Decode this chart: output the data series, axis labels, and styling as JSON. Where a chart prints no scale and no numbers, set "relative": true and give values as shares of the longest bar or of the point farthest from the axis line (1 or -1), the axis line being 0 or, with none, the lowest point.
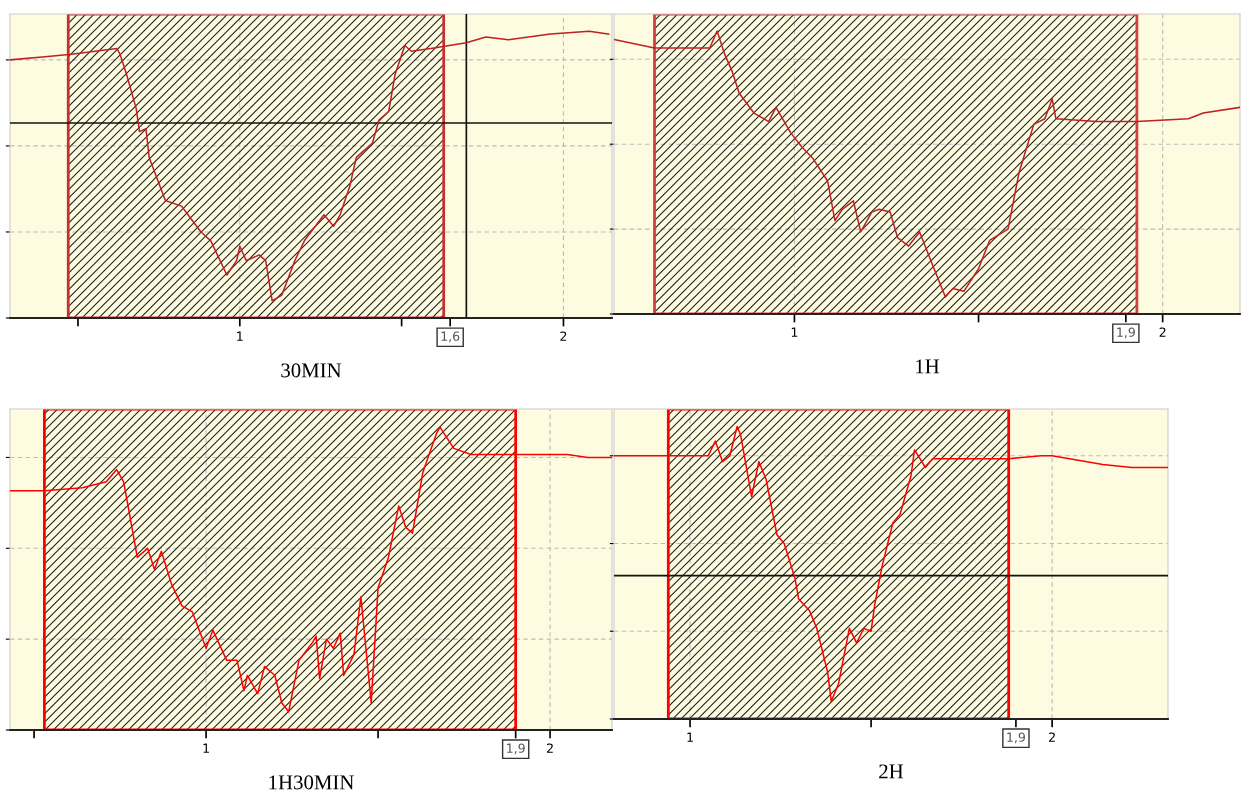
{
  "chart_data": [
    {
      "type": "line",
      "relative": true,
      "xlabel": "30MIN",
      "xlim": [
        0.29,
        2.15
      ],
      "xticks": [
        {
          "value": 0.5,
          "label": null
        },
        1,
        {
          "value": 1.5,
          "label": null
        },
        {
          "value": 1.65,
          "label": "1,6"
        },
        2
      ],
      "grid": true,
      "tick_labels": "x",
      "bands": [
        {
          "axis": "x",
          "from": 0.47,
          "to": 1.63,
          "color": "#c83030"
        }
      ],
      "ref_lines": [
        {
          "axis": "x",
          "value": 1.7
        },
        {
          "axis": "y",
          "value": 0.68
        }
      ],
      "series": [
        {
          "color": "#c02020",
          "x": [
            0.29,
            0.39,
            0.48,
            0.62,
            0.63,
            0.65,
            0.68,
            0.69,
            0.71,
            0.72,
            0.77,
            0.82,
            0.84,
            0.88,
            0.91,
            0.96,
            0.99,
            1.0,
            1.02,
            1.06,
            1.08,
            1.1,
            1.13,
            1.17,
            1.2,
            1.26,
            1.29,
            1.31,
            1.34,
            1.36,
            1.41,
            1.43,
            1.46,
            1.48,
            1.51,
            1.53,
            1.59,
            1.7,
            1.76,
            1.83,
            1.96,
            2.08,
            2.14
          ],
          "values": [
            0.9,
            0.91,
            0.92,
            0.94,
            0.92,
            0.85,
            0.73,
            0.65,
            0.66,
            0.56,
            0.41,
            0.39,
            0.36,
            0.3,
            0.27,
            0.15,
            0.2,
            0.25,
            0.2,
            0.22,
            0.2,
            0.06,
            0.08,
            0.2,
            0.27,
            0.36,
            0.32,
            0.36,
            0.46,
            0.56,
            0.61,
            0.69,
            0.72,
            0.85,
            0.95,
            0.93,
            0.94,
            0.96,
            0.98,
            0.97,
            0.99,
            1.0,
            0.99
          ]
        }
      ]
    },
    {
      "type": "line",
      "relative": true,
      "xlabel": "1H",
      "xlim": [
        0.51,
        2.21
      ],
      "xticks": [
        1,
        {
          "value": 1.5,
          "label": null
        },
        {
          "value": 1.9,
          "label": "1,9"
        },
        2
      ],
      "grid": true,
      "tick_labels": "x",
      "bands": [
        {
          "axis": "x",
          "from": 0.62,
          "to": 1.93,
          "color": "#d04040"
        }
      ],
      "series": [
        {
          "color": "#c02020",
          "x": [
            0.51,
            0.62,
            0.77,
            0.79,
            0.81,
            0.83,
            0.85,
            0.89,
            0.93,
            0.95,
            0.99,
            1.02,
            1.05,
            1.09,
            1.11,
            1.13,
            1.16,
            1.18,
            1.21,
            1.23,
            1.26,
            1.28,
            1.31,
            1.34,
            1.37,
            1.41,
            1.43,
            1.46,
            1.5,
            1.53,
            1.58,
            1.61,
            1.65,
            1.68,
            1.7,
            1.71,
            1.82,
            1.93,
            2.07,
            2.11,
            2.21
          ],
          "values": [
            0.97,
            0.94,
            0.94,
            1.0,
            0.92,
            0.86,
            0.78,
            0.71,
            0.68,
            0.73,
            0.64,
            0.59,
            0.55,
            0.47,
            0.33,
            0.37,
            0.4,
            0.29,
            0.36,
            0.37,
            0.36,
            0.27,
            0.24,
            0.29,
            0.19,
            0.06,
            0.09,
            0.08,
            0.16,
            0.26,
            0.3,
            0.5,
            0.67,
            0.69,
            0.76,
            0.69,
            0.68,
            0.68,
            0.69,
            0.71,
            0.73
          ]
        }
      ]
    },
    {
      "type": "line",
      "relative": true,
      "xlabel": "1H30MIN",
      "xlim": [
        0.43,
        2.18
      ],
      "xticks": [
        {
          "value": 0.5,
          "label": null
        },
        1,
        {
          "value": 1.5,
          "label": null
        },
        {
          "value": 1.9,
          "label": "1,9"
        },
        2
      ],
      "grid": true,
      "tick_labels": "x",
      "bands": [
        {
          "axis": "x",
          "from": 0.53,
          "to": 1.9,
          "color": "#ff0000"
        }
      ],
      "series": [
        {
          "color": "#ff0000",
          "x": [
            0.43,
            0.53,
            0.64,
            0.71,
            0.74,
            0.76,
            0.77,
            0.8,
            0.83,
            0.85,
            0.87,
            0.9,
            0.93,
            0.96,
            1.0,
            1.02,
            1.06,
            1.09,
            1.11,
            1.12,
            1.15,
            1.17,
            1.2,
            1.22,
            1.24,
            1.27,
            1.31,
            1.32,
            1.33,
            1.35,
            1.37,
            1.39,
            1.4,
            1.43,
            1.45,
            1.48,
            1.5,
            1.53,
            1.56,
            1.58,
            1.6,
            1.63,
            1.67,
            1.68,
            1.72,
            1.77,
            2.0,
            2.05,
            2.11,
            2.18
          ],
          "values": [
            0.79,
            0.79,
            0.8,
            0.82,
            0.86,
            0.82,
            0.76,
            0.57,
            0.6,
            0.53,
            0.59,
            0.48,
            0.41,
            0.39,
            0.27,
            0.33,
            0.23,
            0.23,
            0.13,
            0.18,
            0.12,
            0.21,
            0.18,
            0.09,
            0.06,
            0.23,
            0.29,
            0.31,
            0.17,
            0.3,
            0.27,
            0.32,
            0.18,
            0.25,
            0.44,
            0.09,
            0.47,
            0.57,
            0.74,
            0.67,
            0.65,
            0.85,
            0.98,
            1.0,
            0.93,
            0.91,
            0.91,
            0.91,
            0.9,
            0.9
          ]
        }
      ]
    },
    {
      "type": "line",
      "relative": true,
      "xlabel": "2H",
      "xlim": [
        0.79,
        2.32
      ],
      "xticks": [
        1,
        {
          "value": 1.5,
          "label": null
        },
        {
          "value": 1.9,
          "label": "1,9"
        },
        2
      ],
      "grid": true,
      "tick_labels": "x",
      "bands": [
        {
          "axis": "x",
          "from": 0.94,
          "to": 1.88,
          "color": "#ff0000"
        }
      ],
      "ref_lines": [
        {
          "axis": "y",
          "value": 0.49
        }
      ],
      "series": [
        {
          "color": "#ff0000",
          "x": [
            0.79,
            0.93,
            0.97,
            1.05,
            1.07,
            1.09,
            1.11,
            1.13,
            1.14,
            1.17,
            1.19,
            1.21,
            1.24,
            1.26,
            1.29,
            1.3,
            1.33,
            1.35,
            1.38,
            1.39,
            1.41,
            1.44,
            1.46,
            1.48,
            1.5,
            1.51,
            1.53,
            1.56,
            1.58,
            1.61,
            1.62,
            1.65,
            1.67,
            1.88,
            1.97,
            2.0,
            2.14,
            2.22,
            2.32
          ],
          "values": [
            0.9,
            0.9,
            0.9,
            0.9,
            0.95,
            0.88,
            0.9,
            1.0,
            0.97,
            0.76,
            0.88,
            0.82,
            0.63,
            0.6,
            0.48,
            0.41,
            0.37,
            0.31,
            0.16,
            0.06,
            0.12,
            0.31,
            0.26,
            0.31,
            0.3,
            0.39,
            0.52,
            0.67,
            0.7,
            0.83,
            0.92,
            0.86,
            0.89,
            0.89,
            0.9,
            0.9,
            0.87,
            0.86,
            0.86
          ]
        }
      ]
    }
  ]
}
